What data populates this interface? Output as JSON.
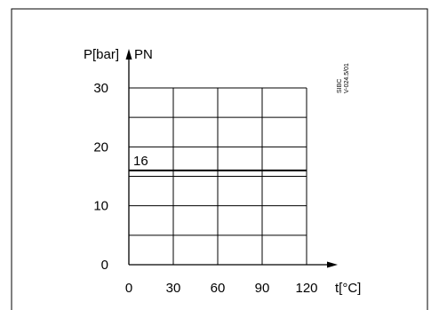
{
  "chart_data": {
    "type": "line",
    "title": "",
    "xlabel": "t[°C]",
    "ylabel": "P[bar]",
    "ylabel_secondary": "PN",
    "x_ticks": [
      0,
      30,
      60,
      90,
      120
    ],
    "y_ticks": [
      0,
      10,
      20,
      30
    ],
    "xlim": [
      0,
      120
    ],
    "ylim": [
      0,
      30
    ],
    "grid": true,
    "series": [
      {
        "x": [
          0,
          120
        ],
        "values": [
          16,
          16
        ],
        "label": "16"
      }
    ],
    "reference": [
      "SIBC",
      "V-024.5/01"
    ],
    "colors": {
      "line": "#000000",
      "grid": "#000000"
    }
  }
}
